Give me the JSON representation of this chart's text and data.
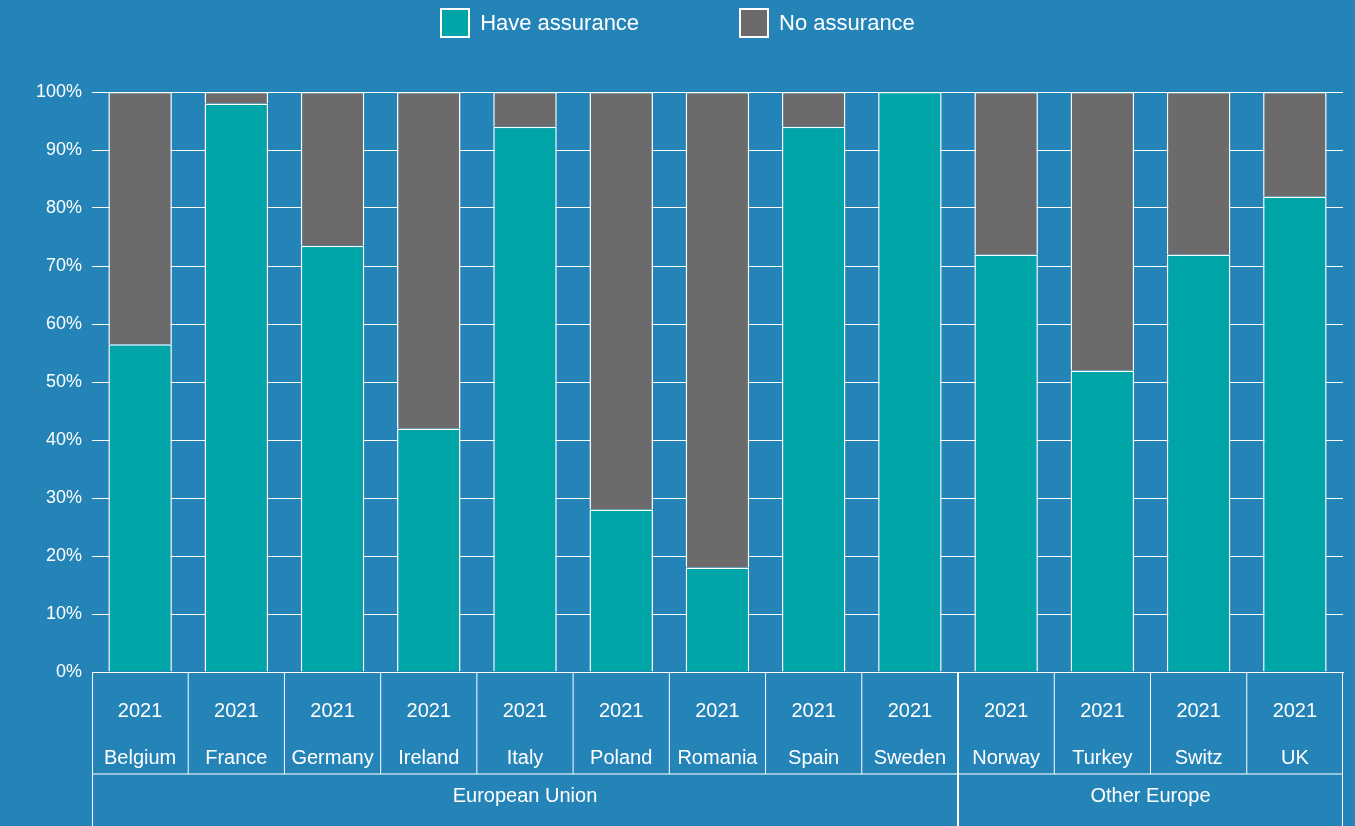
{
  "chart_data": [
    {
      "type": "bar",
      "stacked": true,
      "xlabel": "European Union",
      "legend": "top",
      "grid": "y",
      "categories": [
        "2021\nBelgium",
        "2021\nFrance",
        "2021\nGermany",
        "2021\nIreland",
        "2021\nItaly",
        "2021\nPoland",
        "2021\nRomania",
        "2021\nSpain",
        "2021\nSweden"
      ],
      "series": [
        {
          "name": "Have assurance",
          "color": "#00a5a8",
          "values": [
            56.5,
            98,
            73.5,
            42,
            94,
            28,
            18,
            94,
            100
          ]
        },
        {
          "name": "No assurance",
          "color": "#6d6a6c",
          "values": [
            43.5,
            2,
            26.5,
            58,
            6,
            72,
            82,
            6,
            0
          ]
        }
      ],
      "ylim": [
        0,
        100
      ],
      "yticks": [
        {
          "value": 0,
          "label": "0%"
        },
        {
          "value": 10,
          "label": "10%"
        },
        {
          "value": 20,
          "label": "20%"
        },
        {
          "value": 30,
          "label": "30%"
        },
        {
          "value": 40,
          "label": "40%"
        },
        {
          "value": 50,
          "label": "50%"
        },
        {
          "value": 60,
          "label": "60%"
        },
        {
          "value": 70,
          "label": "70%"
        },
        {
          "value": 80,
          "label": "80%"
        },
        {
          "value": 90,
          "label": "90%"
        },
        {
          "value": 100,
          "label": "100%"
        }
      ]
    },
    {
      "type": "bar",
      "stacked": true,
      "xlabel": "Other Europe",
      "grid": "y",
      "tick_labels": "x",
      "categories": [
        "2021\nNorway",
        "2021\nTurkey",
        "2021\nSwitz",
        "2021\nUK"
      ],
      "series": [
        {
          "color": "#00a5a8",
          "values": [
            72,
            52,
            72,
            82
          ]
        },
        {
          "color": "#6d6a6c",
          "values": [
            28,
            48,
            28,
            18
          ]
        }
      ],
      "ylim": [
        0,
        100
      ],
      "yticks": [
        0,
        10,
        20,
        30,
        40,
        50,
        60,
        70,
        80,
        90,
        100
      ]
    }
  ]
}
